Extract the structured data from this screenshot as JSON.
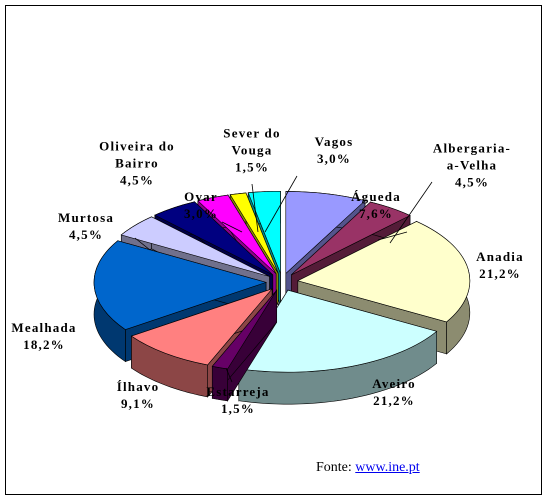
{
  "chart_data": {
    "type": "pie3d",
    "categories": [
      "Águeda",
      "Albergaria-a-Velha",
      "Anadia",
      "Aveiro",
      "Estarreja",
      "Ílhavo",
      "Mealhada",
      "Murtosa",
      "Oliveira do Bairro",
      "Ovar",
      "Sever do Vouga",
      "Vagos"
    ],
    "values": [
      7.6,
      4.5,
      21.2,
      21.2,
      1.5,
      9.1,
      18.2,
      4.5,
      4.5,
      3.0,
      1.5,
      3.0
    ],
    "value_labels": [
      "7,6%",
      "4,5%",
      "21,2%",
      "21,2%",
      "1,5%",
      "9,1%",
      "18,2%",
      "4,5%",
      "4,5%",
      "3,0%",
      "1,5%",
      "3,0%"
    ],
    "colors": [
      "#9999ff",
      "#993366",
      "#ffffcc",
      "#ccffff",
      "#660066",
      "#ff8080",
      "#0066cc",
      "#ccccff",
      "#000080",
      "#ff00ff",
      "#ffff00",
      "#00ffff"
    ]
  },
  "source": {
    "label": "Fonte:",
    "link": "www.ine.pt"
  }
}
